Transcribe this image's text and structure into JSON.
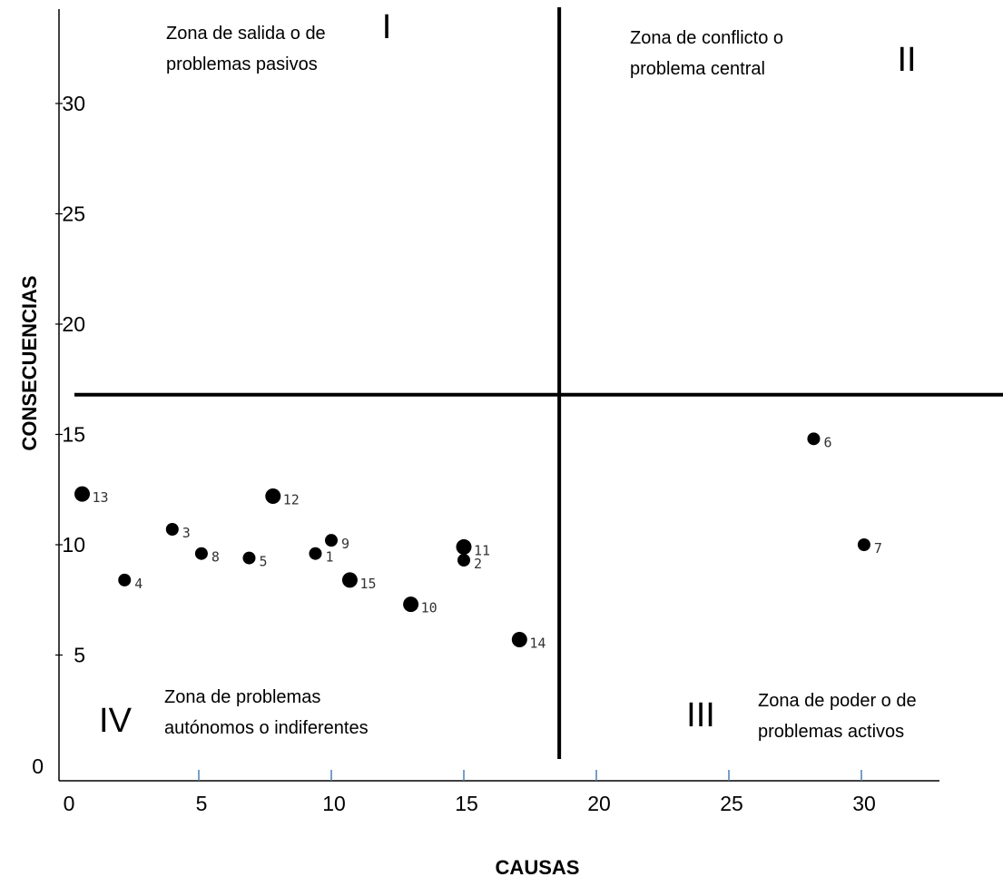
{
  "chart_data": {
    "type": "scatter",
    "xlabel": "CAUSAS",
    "ylabel": "CONSECUENCIAS",
    "xlim": [
      0,
      35
    ],
    "ylim": [
      0,
      35
    ],
    "x_ticks": [
      "0",
      "5",
      "10",
      "15",
      "20",
      "25",
      "30"
    ],
    "y_ticks": [
      "0",
      "5",
      "10",
      "15",
      "20",
      "25",
      "30"
    ],
    "divider_x": 18.6,
    "divider_y": 16.8,
    "grid": false,
    "points": [
      {
        "label": "1",
        "x": 9.4,
        "y": 9.6
      },
      {
        "label": "2",
        "x": 15.0,
        "y": 9.3
      },
      {
        "label": "3",
        "x": 4.0,
        "y": 10.7
      },
      {
        "label": "4",
        "x": 2.2,
        "y": 8.4
      },
      {
        "label": "5",
        "x": 6.9,
        "y": 9.4
      },
      {
        "label": "6",
        "x": 28.2,
        "y": 14.8
      },
      {
        "label": "7",
        "x": 30.1,
        "y": 10.0
      },
      {
        "label": "8",
        "x": 5.1,
        "y": 9.6
      },
      {
        "label": "9",
        "x": 10.0,
        "y": 10.2
      },
      {
        "label": "10",
        "x": 13.0,
        "y": 7.3
      },
      {
        "label": "11",
        "x": 15.0,
        "y": 9.9
      },
      {
        "label": "12",
        "x": 7.8,
        "y": 12.2
      },
      {
        "label": "13",
        "x": 0.6,
        "y": 12.3
      },
      {
        "label": "14",
        "x": 17.1,
        "y": 5.7
      },
      {
        "label": "15",
        "x": 10.7,
        "y": 8.4
      }
    ],
    "zones": [
      {
        "numeral": "I",
        "text": [
          "Zona de salida o de",
          "problemas pasivos"
        ]
      },
      {
        "numeral": "II",
        "text": [
          "Zona de conflicto o",
          "problema central"
        ]
      },
      {
        "numeral": "III",
        "text": [
          "Zona de poder o de",
          "problemas activos"
        ]
      },
      {
        "numeral": "IV",
        "text": [
          "Zona de problemas",
          "autónomos o indiferentes"
        ]
      }
    ]
  }
}
